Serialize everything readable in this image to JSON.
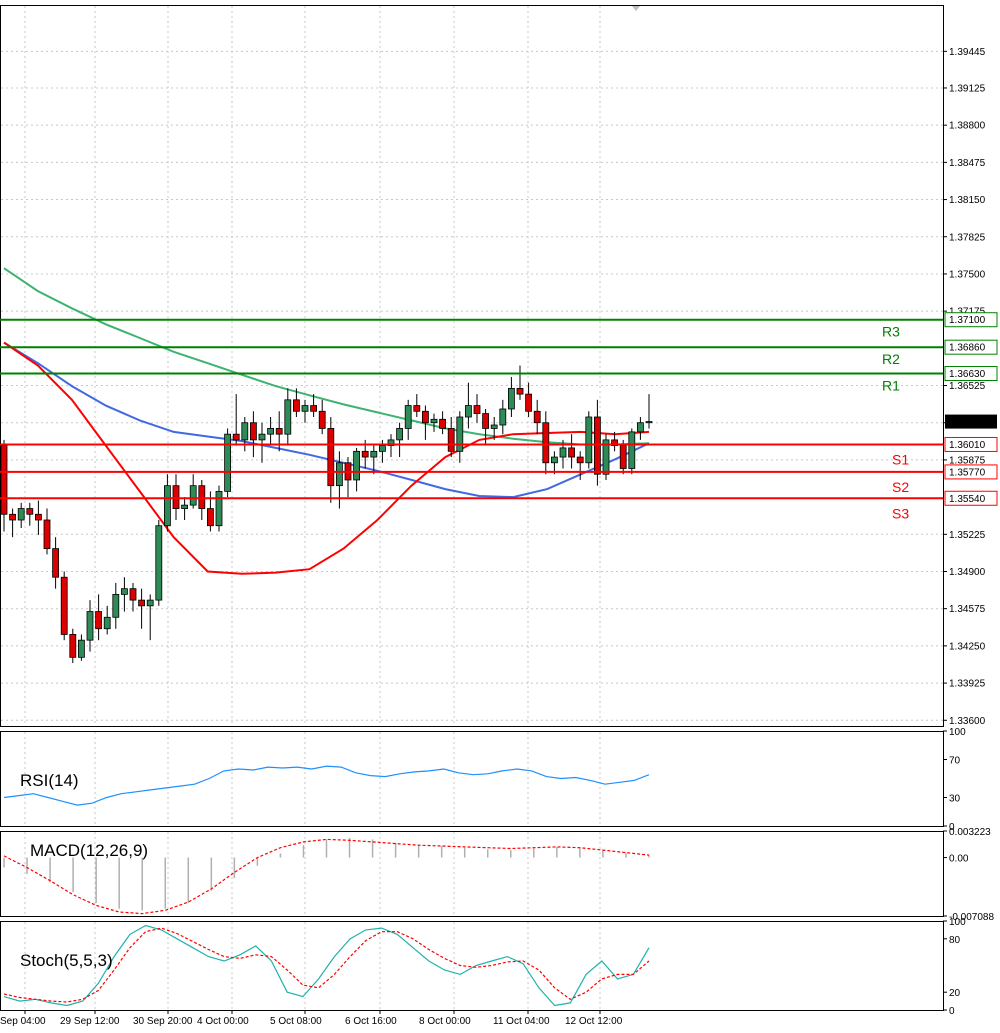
{
  "chart_data": {
    "type": "candlestick",
    "price_axis": {
      "ylim": [
        1.3355,
        1.3985
      ],
      "ticks": [
        "1.39445",
        "1.39125",
        "1.38800",
        "1.38475",
        "1.38150",
        "1.37825",
        "1.37500",
        "1.37175",
        "1.36525",
        "1.36200",
        "1.35875",
        "1.35225",
        "1.34900",
        "1.34575",
        "1.34250",
        "1.33925",
        "1.33600"
      ]
    },
    "current_price": {
      "label": "1.36210",
      "value": 1.3621
    },
    "levels": [
      {
        "name": "R3",
        "value": 1.371,
        "label": "1.37100",
        "color": "#008000"
      },
      {
        "name": "R2",
        "value": 1.3686,
        "label": "1.36860",
        "color": "#008000"
      },
      {
        "name": "R1",
        "value": 1.3663,
        "label": "1.36630",
        "color": "#008000"
      },
      {
        "name": "S1",
        "value": 1.3601,
        "label": "1.36010",
        "color": "#ff0000"
      },
      {
        "name": "S2",
        "value": 1.3577,
        "label": "1.35770",
        "color": "#ff0000"
      },
      {
        "name": "S3",
        "value": 1.3554,
        "label": "1.35540",
        "color": "#ff0000"
      }
    ],
    "x_labels": [
      "Sep 04:00",
      "29 Sep 12:00",
      "30 Sep 20:00",
      "4 Oct 00:00",
      "5 Oct 08:00",
      "6 Oct 16:00",
      "8 Oct 00:00",
      "11 Oct 04:00",
      "12 Oct 12:00"
    ],
    "candles": [
      [
        1.36,
        1.3605,
        1.3525,
        1.354
      ],
      [
        1.354,
        1.3545,
        1.352,
        1.3535
      ],
      [
        1.3535,
        1.355,
        1.3528,
        1.3545
      ],
      [
        1.3545,
        1.355,
        1.353,
        1.354
      ],
      [
        1.354,
        1.3552,
        1.3522,
        1.3535
      ],
      [
        1.3535,
        1.3545,
        1.3505,
        1.351
      ],
      [
        1.351,
        1.352,
        1.3475,
        1.3485
      ],
      [
        1.3485,
        1.349,
        1.343,
        1.3435
      ],
      [
        1.3435,
        1.344,
        1.341,
        1.3415
      ],
      [
        1.3415,
        1.3435,
        1.3412,
        1.343
      ],
      [
        1.343,
        1.3465,
        1.342,
        1.3455
      ],
      [
        1.3455,
        1.347,
        1.343,
        1.344
      ],
      [
        1.344,
        1.346,
        1.3435,
        1.345
      ],
      [
        1.345,
        1.348,
        1.344,
        1.347
      ],
      [
        1.347,
        1.3485,
        1.3455,
        1.3475
      ],
      [
        1.3475,
        1.348,
        1.3455,
        1.3465
      ],
      [
        1.3465,
        1.3475,
        1.344,
        1.346
      ],
      [
        1.346,
        1.347,
        1.343,
        1.3465
      ],
      [
        1.3465,
        1.3535,
        1.346,
        1.353
      ],
      [
        1.353,
        1.3575,
        1.3525,
        1.3565
      ],
      [
        1.3565,
        1.3575,
        1.3535,
        1.3545
      ],
      [
        1.3545,
        1.3555,
        1.3535,
        1.3548
      ],
      [
        1.3548,
        1.3575,
        1.3545,
        1.3565
      ],
      [
        1.3565,
        1.357,
        1.3535,
        1.3545
      ],
      [
        1.3545,
        1.356,
        1.3525,
        1.353
      ],
      [
        1.353,
        1.3565,
        1.3525,
        1.356
      ],
      [
        1.356,
        1.3615,
        1.3555,
        1.361
      ],
      [
        1.361,
        1.3645,
        1.36,
        1.3605
      ],
      [
        1.3605,
        1.3625,
        1.3595,
        1.362
      ],
      [
        1.362,
        1.363,
        1.359,
        1.3605
      ],
      [
        1.3605,
        1.362,
        1.3585,
        1.361
      ],
      [
        1.361,
        1.3625,
        1.36,
        1.3615
      ],
      [
        1.3615,
        1.363,
        1.3595,
        1.361
      ],
      [
        1.361,
        1.365,
        1.36,
        1.364
      ],
      [
        1.364,
        1.365,
        1.3625,
        1.363
      ],
      [
        1.363,
        1.364,
        1.362,
        1.3635
      ],
      [
        1.3635,
        1.3645,
        1.3625,
        1.363
      ],
      [
        1.363,
        1.364,
        1.361,
        1.3615
      ],
      [
        1.3615,
        1.3625,
        1.355,
        1.3565
      ],
      [
        1.3565,
        1.3595,
        1.3545,
        1.3585
      ],
      [
        1.3585,
        1.359,
        1.3555,
        1.357
      ],
      [
        1.357,
        1.3598,
        1.356,
        1.3595
      ],
      [
        1.3595,
        1.3605,
        1.358,
        1.359
      ],
      [
        1.359,
        1.36,
        1.3575,
        1.3595
      ],
      [
        1.3595,
        1.3605,
        1.3585,
        1.36
      ],
      [
        1.36,
        1.361,
        1.359,
        1.3605
      ],
      [
        1.3605,
        1.362,
        1.359,
        1.3615
      ],
      [
        1.3615,
        1.364,
        1.3605,
        1.3635
      ],
      [
        1.3635,
        1.3645,
        1.3625,
        1.363
      ],
      [
        1.363,
        1.3635,
        1.3605,
        1.362
      ],
      [
        1.362,
        1.3628,
        1.3612,
        1.3623
      ],
      [
        1.3623,
        1.363,
        1.361,
        1.3615
      ],
      [
        1.3615,
        1.3625,
        1.359,
        1.3595
      ],
      [
        1.3595,
        1.363,
        1.3585,
        1.3625
      ],
      [
        1.3625,
        1.3655,
        1.3615,
        1.3635
      ],
      [
        1.3635,
        1.3645,
        1.362,
        1.3628
      ],
      [
        1.3628,
        1.3632,
        1.36,
        1.3615
      ],
      [
        1.3615,
        1.3625,
        1.3605,
        1.3618
      ],
      [
        1.3618,
        1.364,
        1.361,
        1.3632
      ],
      [
        1.3632,
        1.366,
        1.3625,
        1.365
      ],
      [
        1.365,
        1.367,
        1.364,
        1.3645
      ],
      [
        1.3645,
        1.3655,
        1.3625,
        1.363
      ],
      [
        1.363,
        1.364,
        1.361,
        1.362
      ],
      [
        1.362,
        1.363,
        1.3575,
        1.3585
      ],
      [
        1.3585,
        1.3595,
        1.3575,
        1.359
      ],
      [
        1.359,
        1.3605,
        1.358,
        1.3598
      ],
      [
        1.3598,
        1.361,
        1.358,
        1.359
      ],
      [
        1.359,
        1.3595,
        1.357,
        1.3585
      ],
      [
        1.3585,
        1.363,
        1.358,
        1.3625
      ],
      [
        1.3625,
        1.364,
        1.3565,
        1.3575
      ],
      [
        1.3575,
        1.361,
        1.357,
        1.3605
      ],
      [
        1.3605,
        1.3612,
        1.3595,
        1.36
      ],
      [
        1.36,
        1.3605,
        1.3575,
        1.358
      ],
      [
        1.358,
        1.3615,
        1.3575,
        1.3612
      ],
      [
        1.3612,
        1.3625,
        1.3605,
        1.362
      ],
      [
        1.362,
        1.3645,
        1.3615,
        1.3621
      ]
    ],
    "sma_red": [
      1.369,
      1.367,
      1.364,
      1.36,
      1.356,
      1.352,
      1.349,
      1.3488,
      1.3489,
      1.3492,
      1.351,
      1.3535,
      1.3565,
      1.359,
      1.3605,
      1.361,
      1.3611,
      1.3612,
      1.361,
      1.3612
    ],
    "sma_blue": [
      1.369,
      1.3672,
      1.3652,
      1.3635,
      1.3622,
      1.3612,
      1.3608,
      1.3604,
      1.3598,
      1.3592,
      1.3585,
      1.3578,
      1.357,
      1.3562,
      1.3556,
      1.3555,
      1.3562,
      1.3575,
      1.3588,
      1.3602
    ],
    "sma_green": [
      1.3755,
      1.3735,
      1.372,
      1.3706,
      1.3694,
      1.3682,
      1.3672,
      1.3662,
      1.3652,
      1.3644,
      1.3636,
      1.3629,
      1.3622,
      1.3615,
      1.361,
      1.3606,
      1.3603,
      1.3601,
      1.3601,
      1.3602
    ],
    "rsi": {
      "label": "RSI(14)",
      "ticks": [
        100,
        70,
        30,
        0
      ],
      "values": [
        30,
        32,
        34,
        30,
        26,
        22,
        24,
        30,
        34,
        36,
        38,
        40,
        42,
        44,
        50,
        58,
        60,
        59,
        62,
        61,
        62,
        60,
        63,
        62,
        56,
        53,
        52,
        55,
        57,
        58,
        60,
        56,
        54,
        55,
        58,
        60,
        58,
        52,
        50,
        51,
        48,
        44,
        46,
        48,
        54
      ]
    },
    "macd": {
      "label": "MACD(12,26,9)",
      "ticks": [
        "0.003223",
        "0.00",
        "-0.007088"
      ],
      "hist": [
        -0.0012,
        -0.002,
        -0.003,
        -0.0042,
        -0.0055,
        -0.0062,
        -0.0064,
        -0.0062,
        -0.0055,
        -0.004,
        -0.0025,
        -0.001,
        0.0005,
        0.0015,
        0.0022,
        0.0024,
        0.0022,
        0.0018,
        0.0015,
        0.0014,
        0.0012,
        0.001,
        0.0009,
        0.0011,
        0.0013,
        0.0012,
        0.0009,
        0.0006,
        0.0003
      ],
      "signal": [
        0.0002,
        -0.0012,
        -0.0028,
        -0.0045,
        -0.0058,
        -0.0066,
        -0.0068,
        -0.0064,
        -0.0054,
        -0.0038,
        -0.0018,
        0.0,
        0.0012,
        0.0019,
        0.0022,
        0.0021,
        0.0019,
        0.0017,
        0.0015,
        0.0014,
        0.0013,
        0.0012,
        0.0011,
        0.0012,
        0.0013,
        0.0012,
        0.0009,
        0.0006,
        0.0003
      ]
    },
    "stoch": {
      "label": "Stoch(5,5,3)",
      "ticks": [
        100,
        80,
        20,
        0
      ],
      "main": [
        15,
        10,
        12,
        8,
        5,
        10,
        30,
        60,
        85,
        95,
        90,
        80,
        70,
        60,
        55,
        62,
        72,
        55,
        20,
        15,
        35,
        60,
        80,
        90,
        92,
        85,
        70,
        55,
        45,
        40,
        50,
        55,
        60,
        52,
        25,
        5,
        8,
        40,
        55,
        35,
        40,
        70
      ],
      "signal": [
        18,
        14,
        12,
        10,
        9,
        12,
        22,
        45,
        70,
        88,
        92,
        86,
        77,
        68,
        60,
        58,
        62,
        60,
        45,
        28,
        25,
        40,
        60,
        78,
        88,
        88,
        80,
        68,
        58,
        50,
        48,
        50,
        54,
        55,
        45,
        25,
        12,
        20,
        35,
        40,
        40,
        55
      ]
    }
  }
}
